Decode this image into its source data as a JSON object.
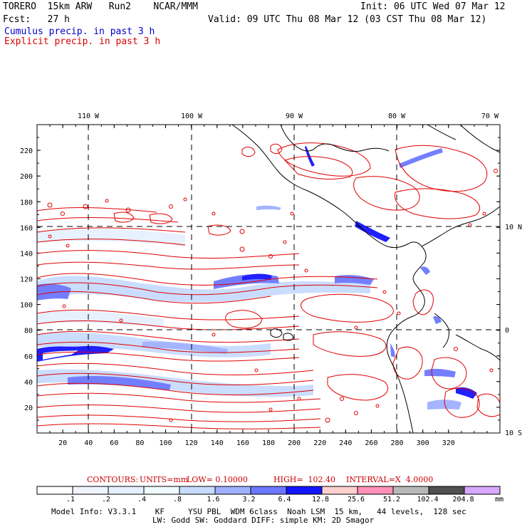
{
  "header": {
    "model": "TORERO  15km ARW   Run2    NCAR/MMM",
    "init": "Init: 06 UTC Wed 07 Mar 12",
    "fcst": "Fcst:   27 h",
    "valid": "Valid: 09 UTC Thu 08 Mar 12 (03 CST Thu 08 Mar 12)",
    "cumulus": "Cumulus precip. in past 3 h",
    "explicit": "Explicit precip. in past 3 h"
  },
  "colors": {
    "cumulus_text": "#0000cc",
    "explicit_text": "#dd0000",
    "contour": "#e00000",
    "coast": "#000000",
    "grid": "#000000"
  },
  "map": {
    "top_lon_labels": [
      "110 W",
      "100 W",
      "90 W",
      "80 W",
      "70 W"
    ],
    "right_lat_labels": [
      "10 N",
      "0",
      "10 S"
    ],
    "x_ticks": [
      "20",
      "40",
      "60",
      "80",
      "100",
      "120",
      "140",
      "160",
      "180",
      "200",
      "220",
      "240",
      "260",
      "280",
      "300",
      "320"
    ],
    "y_ticks": [
      "20",
      "40",
      "60",
      "80",
      "100",
      "120",
      "140",
      "160",
      "180",
      "200",
      "220"
    ]
  },
  "contour_info": {
    "label": "CONTOURS:",
    "units": "UNITS=mm",
    "low": "LOW= 0.10000",
    "high": "HIGH=  102.40",
    "interval": "INTERVAL=X  4.0000"
  },
  "colorbar": {
    "labels": [
      ".1",
      ".2",
      ".4",
      ".8",
      "1.6",
      "3.2",
      "6.4",
      "12.8",
      "25.6",
      "51.2",
      "102.4",
      "204.8"
    ],
    "unit": "mm",
    "fills": [
      "#ffffff",
      "#f0f4ff",
      "#e6f0ff",
      "#f0fbff",
      "#c8dcff",
      "#a0b0ff",
      "#6c78ff",
      "#1414ff",
      "#ffd0d0",
      "#ff90b8",
      "#b8b8b8",
      "#505050",
      "#d8a8ff"
    ]
  },
  "footer": {
    "line1": "Model Info: V3.3.1    KF     YSU PBL  WDM 6class  Noah LSM  15 km,   44 levels,  128 sec",
    "line2": "LW: Godd SW: Goddard DIFF: simple KM: 2D Smagor"
  }
}
